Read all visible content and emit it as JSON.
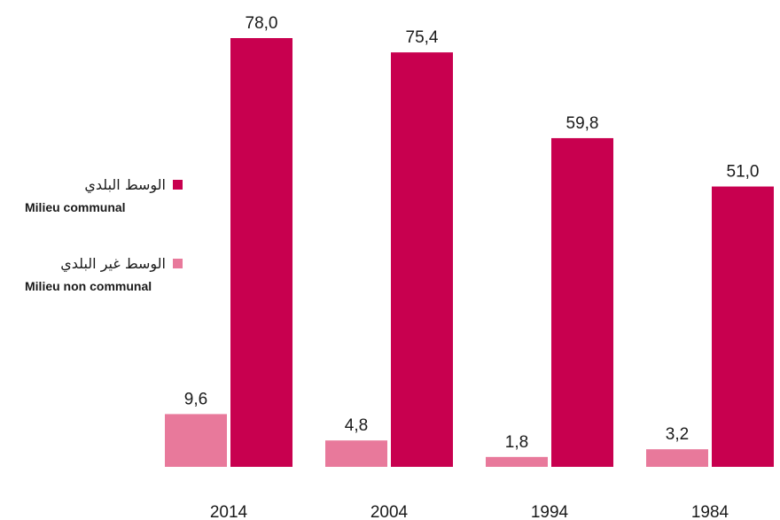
{
  "chart_data": {
    "type": "bar",
    "categories": [
      "2014",
      "2004",
      "1994",
      "1984"
    ],
    "series": [
      {
        "name": "الوسط غير البلدي Milieu non communal",
        "values": [
          9.6,
          4.8,
          1.8,
          3.2
        ],
        "value_labels": [
          "9,6",
          "4,8",
          "1,8",
          "3,2"
        ],
        "color": "#e8799b"
      },
      {
        "name": "الوسط البلدي Milieu communal",
        "values": [
          78.0,
          75.4,
          59.8,
          51.0
        ],
        "value_labels": [
          "78,0",
          "75,4",
          "59,8",
          "51,0"
        ],
        "color": "#c8004f"
      }
    ],
    "ylim": [
      0,
      78
    ]
  },
  "legend": {
    "communal_ar": "الوسط البلدي",
    "communal_fr": "Milieu communal",
    "non_communal_ar": "الوسط غير البلدي",
    "non_communal_fr": "Milieu non communal",
    "communal_color": "#c8004f",
    "non_communal_color": "#e8799b"
  }
}
